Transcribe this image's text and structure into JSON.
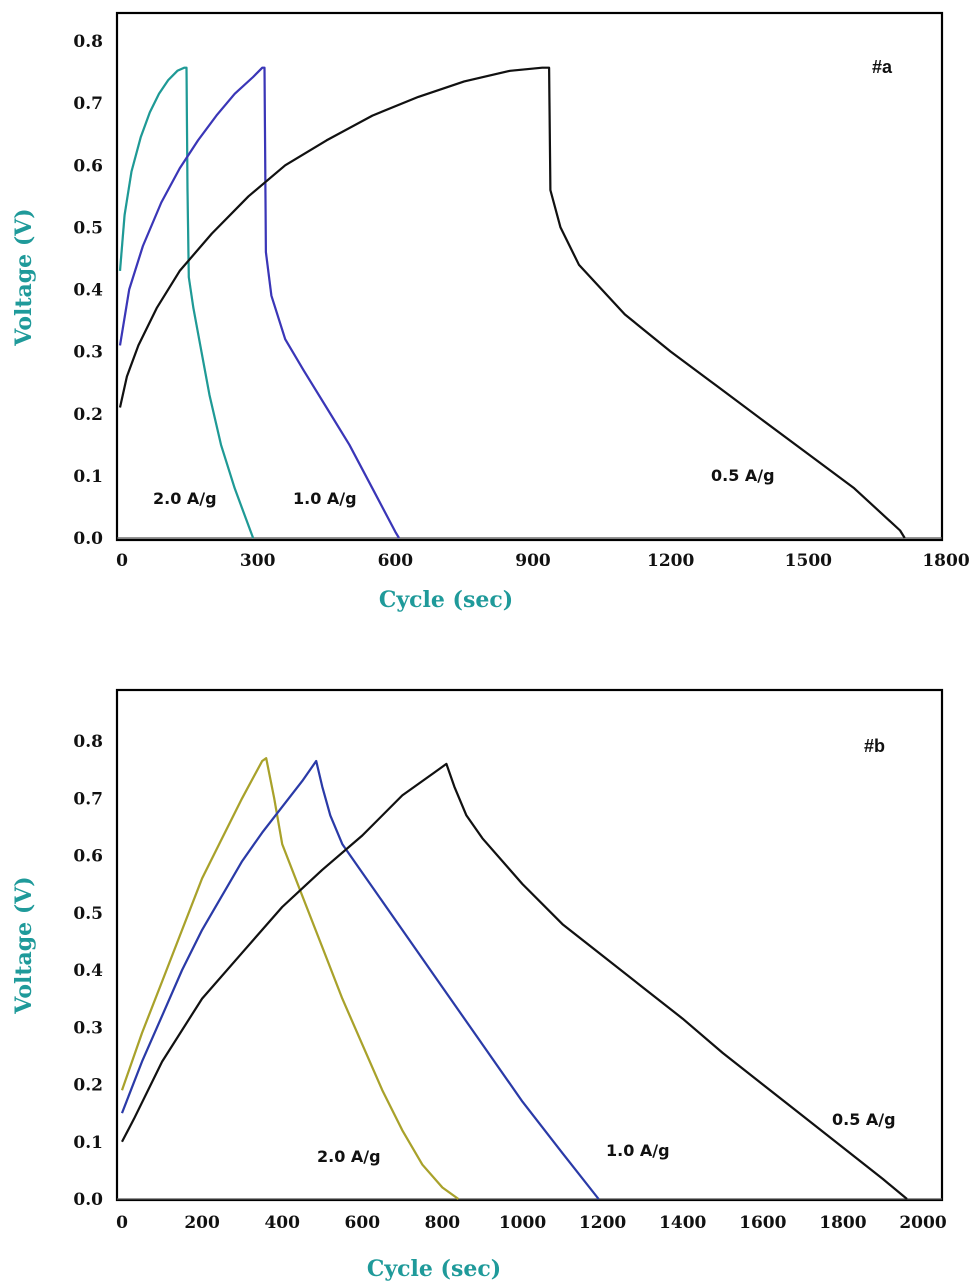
{
  "chart_data": [
    {
      "type": "line",
      "annotation": "#a",
      "xlabel": "Cycle (sec)",
      "ylabel": "Voltage (V)",
      "xlim": [
        0,
        1800
      ],
      "ylim": [
        0,
        0.8
      ],
      "xticks": [
        "0",
        "300",
        "600",
        "900",
        "1200",
        "1500",
        "1800"
      ],
      "yticks": [
        "0.0",
        "0.1",
        "0.2",
        "0.3",
        "0.4",
        "0.5",
        "0.6",
        "0.7",
        "0.8"
      ],
      "series": [
        {
          "name": "2.0 A/g",
          "color": "#1e9a96",
          "x": [
            0,
            10,
            25,
            45,
            65,
            85,
            105,
            125,
            140,
            145,
            147,
            150,
            160,
            175,
            195,
            220,
            250,
            275,
            290
          ],
          "y": [
            0.43,
            0.52,
            0.59,
            0.645,
            0.685,
            0.715,
            0.737,
            0.752,
            0.757,
            0.757,
            0.56,
            0.42,
            0.37,
            0.31,
            0.23,
            0.15,
            0.08,
            0.03,
            0.0
          ]
        },
        {
          "name": "1.0 A/g",
          "color": "#3a36b8",
          "x": [
            0,
            20,
            50,
            90,
            130,
            170,
            210,
            250,
            290,
            310,
            315,
            318,
            330,
            360,
            400,
            450,
            500,
            550,
            600,
            608
          ],
          "y": [
            0.31,
            0.4,
            0.47,
            0.54,
            0.595,
            0.64,
            0.68,
            0.715,
            0.742,
            0.757,
            0.757,
            0.46,
            0.39,
            0.32,
            0.27,
            0.21,
            0.15,
            0.08,
            0.01,
            0.0
          ]
        },
        {
          "name": "0.5 A/g",
          "color": "#111111",
          "x": [
            0,
            15,
            40,
            80,
            130,
            200,
            280,
            360,
            450,
            550,
            650,
            750,
            850,
            920,
            935,
            938,
            960,
            1000,
            1100,
            1200,
            1300,
            1400,
            1500,
            1600,
            1700,
            1710
          ],
          "y": [
            0.21,
            0.26,
            0.31,
            0.37,
            0.43,
            0.49,
            0.55,
            0.6,
            0.64,
            0.68,
            0.71,
            0.735,
            0.752,
            0.757,
            0.757,
            0.56,
            0.5,
            0.44,
            0.36,
            0.3,
            0.245,
            0.19,
            0.135,
            0.08,
            0.012,
            0.0
          ]
        }
      ]
    },
    {
      "type": "line",
      "annotation": "#b",
      "xlabel": "Cycle (sec)",
      "ylabel": "Voltage (V)",
      "xlim": [
        0,
        2000
      ],
      "ylim": [
        0,
        0.86
      ],
      "xticks": [
        "0",
        "200",
        "400",
        "600",
        "800",
        "1000",
        "1200",
        "1400",
        "1600",
        "1800",
        "2000"
      ],
      "yticks": [
        "0.0",
        "0.1",
        "0.2",
        "0.3",
        "0.4",
        "0.5",
        "0.6",
        "0.7",
        "0.8"
      ],
      "series": [
        {
          "name": "2.0 A/g",
          "color": "#a9a22a",
          "x": [
            0,
            50,
            100,
            150,
            200,
            250,
            300,
            350,
            360,
            380,
            400,
            450,
            500,
            550,
            600,
            650,
            700,
            750,
            800,
            840
          ],
          "y": [
            0.19,
            0.29,
            0.38,
            0.47,
            0.56,
            0.63,
            0.7,
            0.765,
            0.77,
            0.7,
            0.62,
            0.53,
            0.44,
            0.35,
            0.27,
            0.19,
            0.12,
            0.06,
            0.02,
            0.0
          ]
        },
        {
          "name": "1.0 A/g",
          "color": "#2a3aa8",
          "x": [
            0,
            50,
            100,
            150,
            200,
            250,
            300,
            350,
            400,
            450,
            485,
            500,
            520,
            550,
            600,
            700,
            800,
            900,
            1000,
            1100,
            1190
          ],
          "y": [
            0.15,
            0.24,
            0.32,
            0.4,
            0.47,
            0.53,
            0.59,
            0.64,
            0.685,
            0.73,
            0.765,
            0.72,
            0.67,
            0.62,
            0.57,
            0.47,
            0.37,
            0.27,
            0.17,
            0.08,
            0.0
          ]
        },
        {
          "name": "0.5 A/g",
          "color": "#111111",
          "x": [
            0,
            30,
            100,
            200,
            300,
            400,
            500,
            600,
            700,
            780,
            810,
            830,
            860,
            900,
            1000,
            1100,
            1200,
            1300,
            1400,
            1500,
            1600,
            1700,
            1800,
            1900,
            1960
          ],
          "y": [
            0.1,
            0.14,
            0.24,
            0.35,
            0.43,
            0.51,
            0.575,
            0.635,
            0.705,
            0.745,
            0.76,
            0.72,
            0.67,
            0.63,
            0.55,
            0.48,
            0.425,
            0.37,
            0.315,
            0.255,
            0.2,
            0.145,
            0.09,
            0.035,
            0.0
          ]
        }
      ]
    }
  ]
}
